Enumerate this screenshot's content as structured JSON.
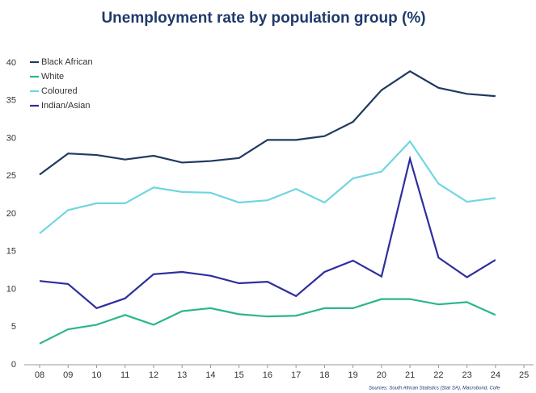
{
  "chart_data": {
    "type": "line",
    "title": "Unemployment rate by population group (%)",
    "source": "Sources: South African Statistics (Stat SA), Macrobond, Cofe",
    "categories": [
      "08",
      "09",
      "10",
      "11",
      "12",
      "13",
      "14",
      "15",
      "16",
      "17",
      "18",
      "19",
      "20",
      "21",
      "22",
      "23",
      "24",
      "25"
    ],
    "series": [
      {
        "name": "Black African",
        "color": "#1f3a5f",
        "values": [
          25.2,
          28.0,
          27.8,
          27.2,
          27.7,
          26.8,
          27.0,
          27.4,
          29.8,
          29.8,
          30.3,
          32.2,
          36.4,
          38.9,
          36.7,
          35.9,
          35.6,
          null
        ]
      },
      {
        "name": "White",
        "color": "#2bb58f",
        "values": [
          2.8,
          4.7,
          5.3,
          6.6,
          5.3,
          7.1,
          7.5,
          6.7,
          6.4,
          6.5,
          7.5,
          7.5,
          8.7,
          8.7,
          8.0,
          8.3,
          6.6,
          null
        ]
      },
      {
        "name": "Coloured",
        "color": "#6fd6e0",
        "values": [
          17.4,
          20.5,
          21.4,
          21.4,
          23.5,
          22.9,
          22.8,
          21.5,
          21.8,
          23.3,
          21.5,
          24.7,
          25.6,
          29.6,
          24.0,
          21.6,
          22.1,
          null
        ]
      },
      {
        "name": "Indian/Asian",
        "color": "#2e2ea0",
        "values": [
          11.1,
          10.7,
          7.5,
          8.8,
          12.0,
          12.3,
          11.8,
          10.8,
          11.0,
          9.1,
          12.3,
          13.8,
          11.7,
          27.3,
          14.2,
          11.6,
          13.9,
          null
        ]
      }
    ],
    "ylim": [
      0,
      40
    ],
    "yticks": [
      0,
      5,
      10,
      15,
      20,
      25,
      30,
      35,
      40
    ],
    "grid": false,
    "legend": "top-left"
  }
}
